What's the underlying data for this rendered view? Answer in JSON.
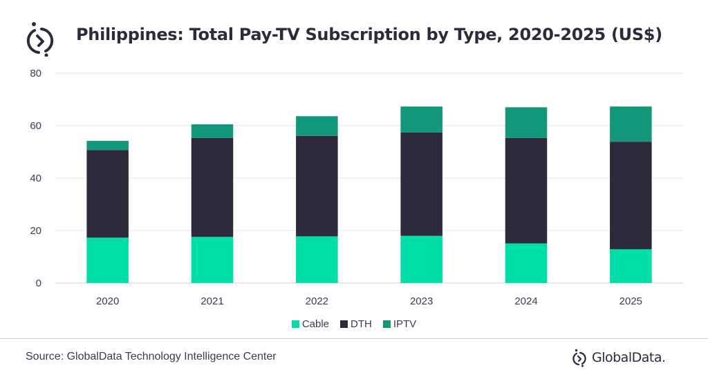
{
  "header": {
    "title": "Philippines: Total Pay-TV Subscription by Type, 2020-2025 (US$)",
    "logo_icon": "globaldata-logo-icon"
  },
  "colors": {
    "Cable": "#00dea8",
    "DTH": "#2e2a3c",
    "IPTV": "#13977a",
    "grid": "#e3e3e3",
    "text": "#3d3950"
  },
  "chart_data": {
    "type": "bar",
    "stacked": true,
    "title": "Philippines: Total Pay-TV Subscription by Type, 2020-2025 (US$)",
    "xlabel": "",
    "ylabel": "",
    "categories": [
      "2020",
      "2021",
      "2022",
      "2023",
      "2024",
      "2025"
    ],
    "series": [
      {
        "name": "Cable",
        "values": [
          17.3,
          17.6,
          17.8,
          18.0,
          15.1,
          12.9
        ]
      },
      {
        "name": "DTH",
        "values": [
          33.4,
          37.7,
          38.3,
          39.4,
          40.2,
          41.0
        ]
      },
      {
        "name": "IPTV",
        "values": [
          3.5,
          5.2,
          7.5,
          9.9,
          11.7,
          13.4
        ]
      }
    ],
    "ylim": [
      0,
      80
    ],
    "yticks": [
      0,
      20,
      40,
      60,
      80
    ],
    "grid": true,
    "legend_position": "bottom-center"
  },
  "legend": [
    {
      "label": "Cable"
    },
    {
      "label": "DTH"
    },
    {
      "label": "IPTV"
    }
  ],
  "footer": {
    "source": "Source: GlobalData Technology Intelligence Center",
    "brand": "GlobalData."
  }
}
